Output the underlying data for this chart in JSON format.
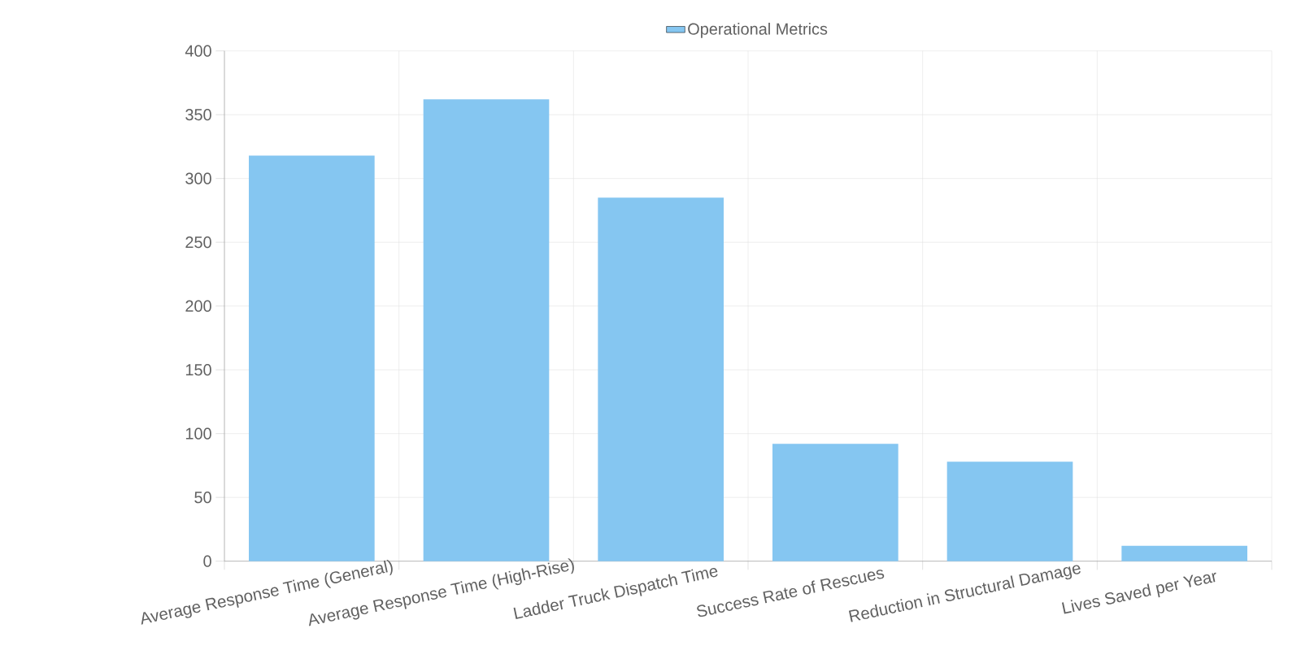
{
  "chart_data": {
    "type": "bar",
    "categories": [
      "Average Response Time (General)",
      "Average Response Time (High-Rise)",
      "Ladder Truck Dispatch Time",
      "Success Rate of Rescues",
      "Reduction in Structural Damage",
      "Lives Saved per Year"
    ],
    "series": [
      {
        "name": "Operational Metrics",
        "color": "#85c6f1",
        "values": [
          318,
          362,
          285,
          92,
          78,
          12
        ]
      }
    ],
    "ylim": [
      0,
      400
    ],
    "yticks": [
      0,
      50,
      100,
      150,
      200,
      250,
      300,
      350,
      400
    ],
    "grid": true,
    "legend": "top"
  }
}
